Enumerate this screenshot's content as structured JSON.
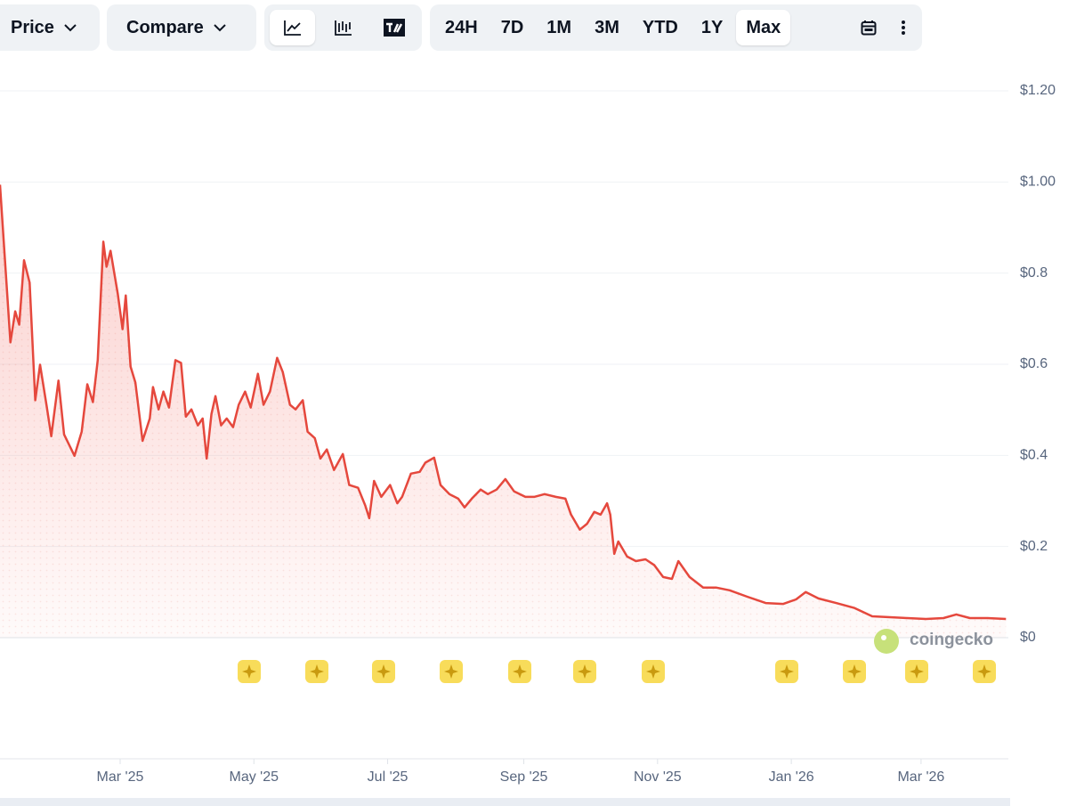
{
  "toolbar": {
    "price_button": "Price",
    "compare_button": "Compare",
    "ranges": [
      "24H",
      "7D",
      "1M",
      "3M",
      "YTD",
      "1Y",
      "Max"
    ],
    "selected_range": 6
  },
  "chart_data": {
    "type": "line",
    "watermark": "coingecko",
    "color": "#e5483d",
    "grid": true,
    "xlim": [
      2025.012,
      2026.271
    ],
    "ylim": [
      0,
      1.2
    ],
    "xticks": [
      {
        "value": 2025.162,
        "label": "Mar '25"
      },
      {
        "value": 2025.329,
        "label": "May '25"
      },
      {
        "value": 2025.496,
        "label": "Jul '25"
      },
      {
        "value": 2025.666,
        "label": "Sep '25"
      },
      {
        "value": 2025.833,
        "label": "Nov '25"
      },
      {
        "value": 2026.0,
        "label": "Jan '26"
      },
      {
        "value": 2026.162,
        "label": "Mar '26"
      }
    ],
    "yticks": [
      {
        "value": 0,
        "label": "$0"
      },
      {
        "value": 0.2,
        "label": "$0.2"
      },
      {
        "value": 0.4,
        "label": "$0.4"
      },
      {
        "value": 0.6,
        "label": "$0.6"
      },
      {
        "value": 0.8,
        "label": "$0.8"
      },
      {
        "value": 1,
        "label": "$1.00"
      },
      {
        "value": 1.2,
        "label": "$1.20"
      }
    ],
    "x": [
      2025.012,
      2025.018,
      2025.025,
      2025.031,
      2025.036,
      2025.042,
      2025.049,
      2025.056,
      2025.062,
      2025.07,
      2025.076,
      2025.085,
      2025.092,
      2025.105,
      2025.114,
      2025.121,
      2025.128,
      2025.134,
      2025.141,
      2025.145,
      2025.15,
      2025.159,
      2025.165,
      2025.169,
      2025.175,
      2025.181,
      2025.19,
      2025.199,
      2025.203,
      2025.21,
      2025.216,
      2025.223,
      2025.231,
      2025.238,
      2025.244,
      2025.251,
      2025.259,
      2025.265,
      2025.27,
      2025.276,
      2025.281,
      2025.288,
      2025.295,
      2025.303,
      2025.31,
      2025.318,
      2025.325,
      2025.334,
      2025.341,
      2025.349,
      2025.358,
      2025.365,
      2025.374,
      2025.381,
      2025.39,
      2025.396,
      2025.405,
      2025.412,
      2025.42,
      2025.429,
      2025.44,
      2025.448,
      2025.459,
      2025.468,
      2025.473,
      2025.479,
      2025.488,
      2025.499,
      2025.508,
      2025.514,
      2025.525,
      2025.536,
      2025.543,
      2025.554,
      2025.562,
      2025.573,
      2025.584,
      2025.592,
      2025.601,
      2025.612,
      2025.621,
      2025.632,
      2025.643,
      2025.654,
      2025.668,
      2025.679,
      2025.692,
      2025.706,
      2025.718,
      2025.725,
      2025.736,
      2025.745,
      2025.754,
      2025.762,
      2025.77,
      2025.774,
      2025.779,
      2025.784,
      2025.795,
      2025.806,
      2025.818,
      2025.829,
      2025.84,
      2025.851,
      2025.859,
      2025.873,
      2025.89,
      2025.906,
      2025.923,
      2025.945,
      2025.968,
      2025.99,
      2026.006,
      2026.018,
      2026.034,
      2026.056,
      2026.079,
      2026.101,
      2026.123,
      2026.145,
      2026.168,
      2026.19,
      2026.206,
      2026.223,
      2026.245,
      2026.268
    ],
    "values": [
      0.994,
      0.834,
      0.648,
      0.716,
      0.687,
      0.828,
      0.779,
      0.521,
      0.599,
      0.511,
      0.442,
      0.564,
      0.446,
      0.399,
      0.452,
      0.556,
      0.517,
      0.609,
      0.869,
      0.814,
      0.849,
      0.755,
      0.677,
      0.751,
      0.595,
      0.56,
      0.432,
      0.481,
      0.55,
      0.501,
      0.54,
      0.505,
      0.609,
      0.603,
      0.485,
      0.501,
      0.466,
      0.481,
      0.393,
      0.491,
      0.53,
      0.466,
      0.481,
      0.462,
      0.511,
      0.54,
      0.505,
      0.579,
      0.511,
      0.54,
      0.614,
      0.583,
      0.511,
      0.501,
      0.521,
      0.452,
      0.438,
      0.393,
      0.413,
      0.368,
      0.403,
      0.335,
      0.329,
      0.29,
      0.262,
      0.344,
      0.309,
      0.335,
      0.295,
      0.309,
      0.36,
      0.364,
      0.384,
      0.395,
      0.335,
      0.315,
      0.305,
      0.286,
      0.305,
      0.325,
      0.315,
      0.325,
      0.348,
      0.321,
      0.309,
      0.309,
      0.315,
      0.309,
      0.305,
      0.27,
      0.237,
      0.25,
      0.276,
      0.27,
      0.295,
      0.27,
      0.184,
      0.211,
      0.178,
      0.168,
      0.172,
      0.159,
      0.133,
      0.129,
      0.168,
      0.133,
      0.11,
      0.11,
      0.104,
      0.09,
      0.076,
      0.074,
      0.084,
      0.1,
      0.086,
      0.076,
      0.065,
      0.047,
      0.045,
      0.043,
      0.041,
      0.043,
      0.051,
      0.043,
      0.043,
      0.041
    ]
  }
}
